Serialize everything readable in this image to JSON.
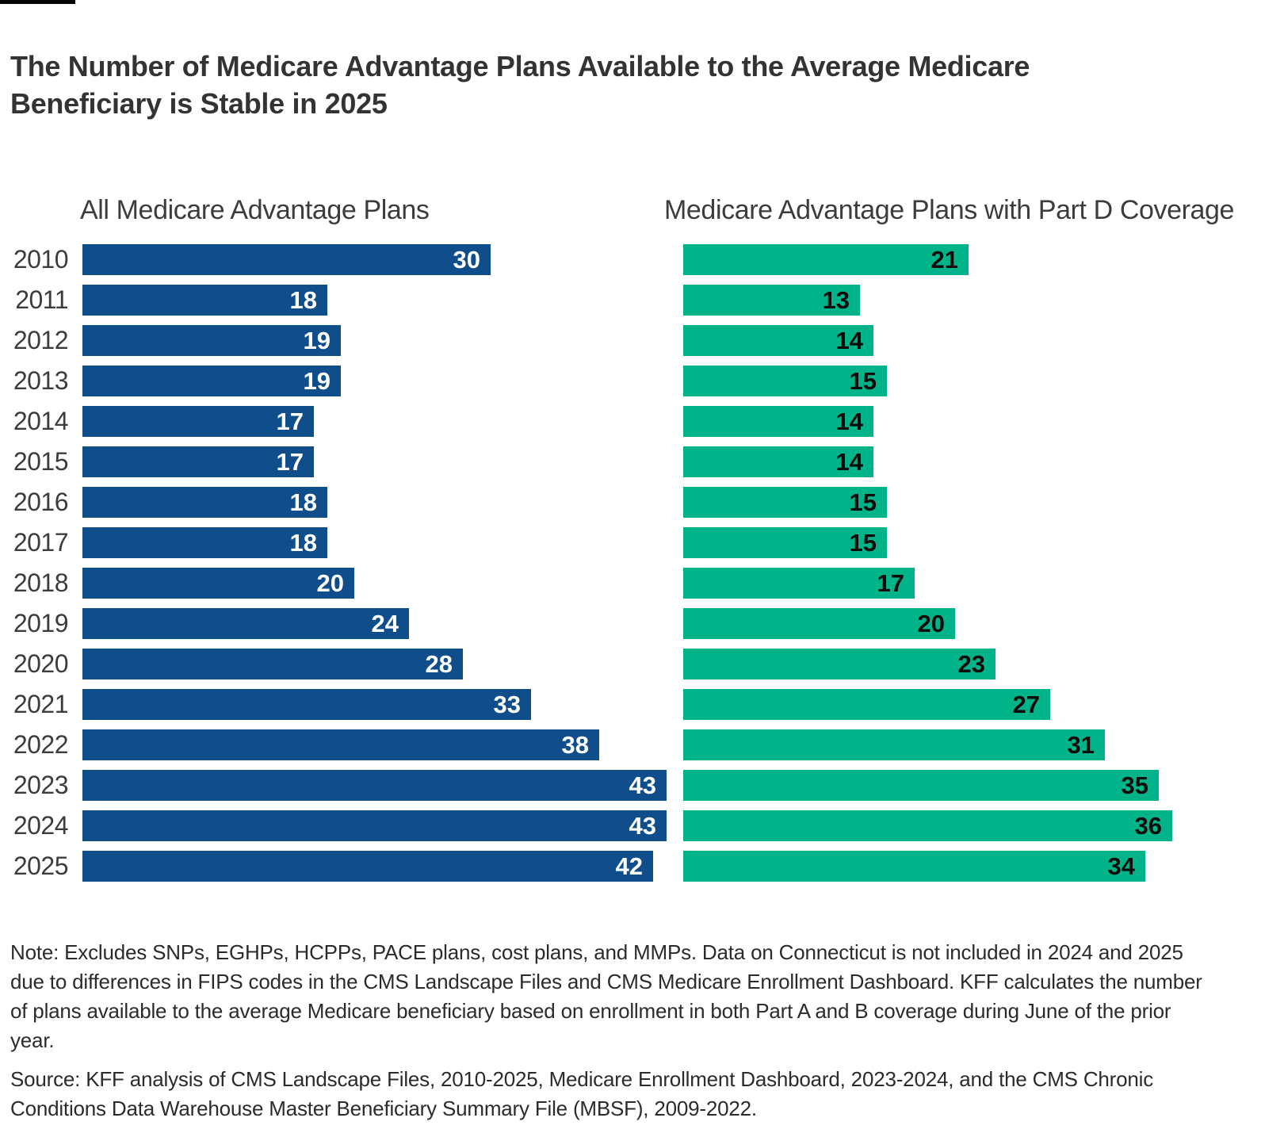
{
  "page": {
    "title": "The Number of Medicare Advantage Plans Available to the Average Medicare Beneficiary is Stable in 2025",
    "note": "Note: Excludes SNPs, EGHPs, HCPPs, PACE plans, cost plans, and MMPs. Data on Connecticut is not included in 2024 and 2025 due to differences in FIPS codes in the CMS Landscape Files and CMS Medicare Enrollment Dashboard. KFF calculates the number of plans available to the average Medicare beneficiary based on enrollment in both Part A and B coverage during June of the prior year.",
    "source": "Source: KFF analysis of CMS Landscape Files, 2010-2025, Medicare Enrollment Dashboard, 2023-2024, and the CMS Chronic Conditions Data Warehouse Master Beneficiary Summary File (MBSF), 2009-2022."
  },
  "colors": {
    "blue_bar": "#0F4E8B",
    "green_bar": "#00B388",
    "blue_bar_label": "#FFFFFF",
    "green_bar_label": "#0B0B0B",
    "title_text": "#333333",
    "axis_text": "#3C3C3C",
    "footnote_text": "#2B2B2B"
  },
  "chart_data": {
    "type": "bar",
    "orientation": "horizontal",
    "title": "The Number of Medicare Advantage Plans Available to the Average Medicare Beneficiary is Stable in 2025",
    "categories": [
      "2010",
      "2011",
      "2012",
      "2013",
      "2014",
      "2015",
      "2016",
      "2017",
      "2018",
      "2019",
      "2020",
      "2021",
      "2022",
      "2023",
      "2024",
      "2025"
    ],
    "series": [
      {
        "name": "All Medicare Advantage Plans",
        "color": "#0F4E8B",
        "label_color": "#FFFFFF",
        "values": [
          30,
          18,
          19,
          19,
          17,
          17,
          18,
          18,
          20,
          24,
          28,
          33,
          38,
          43,
          43,
          42
        ]
      },
      {
        "name": "Medicare Advantage Plans with Part D Coverage",
        "color": "#00B388",
        "label_color": "#0B0B0B",
        "values": [
          21,
          13,
          14,
          15,
          14,
          14,
          15,
          15,
          17,
          20,
          23,
          27,
          31,
          35,
          36,
          34
        ]
      }
    ],
    "value_labels": "inside-end",
    "xlim": [
      0,
      44
    ],
    "grid": false,
    "legend_position": "column-headers-above-each-panel"
  }
}
